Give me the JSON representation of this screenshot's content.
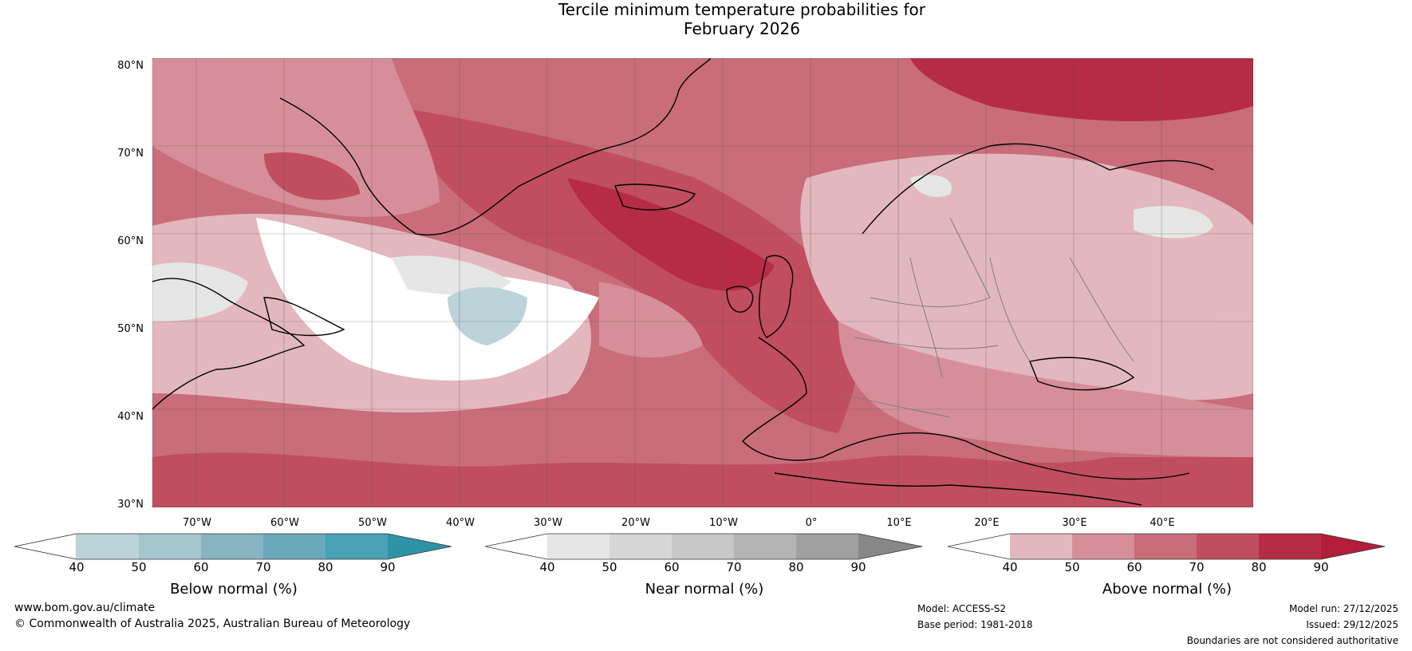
{
  "title": {
    "line1": "Tercile minimum temperature probabilities for",
    "line2": "February 2026"
  },
  "latitude_labels": [
    "80°N",
    "70°N",
    "60°N",
    "50°N",
    "40°N",
    "30°N"
  ],
  "longitude_labels": [
    "70°W",
    "60°W",
    "50°W",
    "40°W",
    "30°W",
    "20°W",
    "10°W",
    "0°",
    "10°E",
    "20°E",
    "30°E",
    "40°E"
  ],
  "colorbars": [
    {
      "label": "Below normal (%)",
      "ticks": [
        "40",
        "50",
        "60",
        "70",
        "80",
        "90"
      ],
      "colors": [
        "#ffffff",
        "#bdd3da",
        "#a6c6ce",
        "#88b4c2",
        "#6aa9bb",
        "#48a1b5",
        "#2f93a8"
      ]
    },
    {
      "label": "Near normal (%)",
      "ticks": [
        "40",
        "50",
        "60",
        "70",
        "80",
        "90"
      ],
      "colors": [
        "#ffffff",
        "#e6e6e6",
        "#d6d6d6",
        "#c8c8c8",
        "#b4b4b4",
        "#a0a0a0",
        "#888888"
      ]
    },
    {
      "label": "Above normal (%)",
      "ticks": [
        "40",
        "50",
        "60",
        "70",
        "80",
        "90"
      ],
      "colors": [
        "#ffffff",
        "#e3b7be",
        "#d68f9a",
        "#c96d7a",
        "#c04e5f",
        "#b52c44",
        "#b11d3a"
      ]
    }
  ],
  "footer": {
    "website": "www.bom.gov.au/climate",
    "copyright": "© Commonwealth of Australia 2025, Australian Bureau of Meteorology",
    "model": "Model: ACCESS-S2",
    "base_period": "Base period: 1981-2018",
    "model_run": "Model run: 27/12/2025",
    "issued": "Issued: 29/12/2025",
    "disclaimer": "Boundaries are not considered authoritative"
  }
}
